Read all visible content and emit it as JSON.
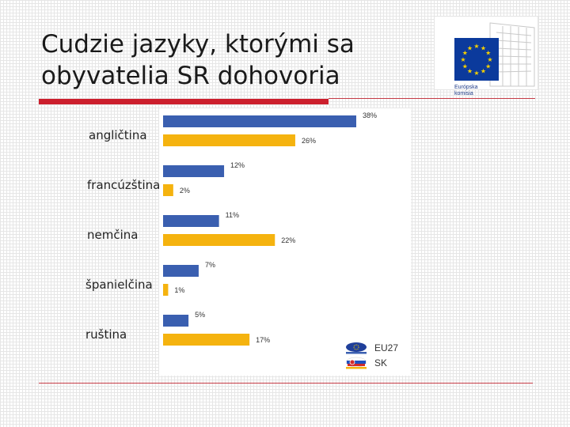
{
  "slide": {
    "title_line1": "Cudzie jazyky, ktorými sa",
    "title_line2": "obyvatelia SR dohovoria"
  },
  "logo": {
    "line1": "Európska",
    "line2": "komisia",
    "flag_color": "#0b3a9c",
    "star_color": "#f5d000"
  },
  "chart_data": {
    "type": "bar",
    "orientation": "horizontal",
    "categories": [
      "angličtina",
      "francúzština",
      "nemčina",
      "španielčina",
      "ruština"
    ],
    "series": [
      {
        "name": "EU27",
        "values": [
          38,
          12,
          11,
          7,
          5
        ],
        "labels": [
          "38%",
          "12%",
          "11%",
          "7%",
          "5%"
        ],
        "color": "#3a5fb0"
      },
      {
        "name": "SK",
        "values": [
          26,
          2,
          22,
          1,
          17
        ],
        "labels": [
          "26%",
          "2%",
          "22%",
          "1%",
          "17%"
        ],
        "color": "#f5b30f"
      }
    ],
    "unit": "%",
    "xlim": [
      0,
      40
    ],
    "grid": false,
    "legend_position": "bottom-right"
  }
}
